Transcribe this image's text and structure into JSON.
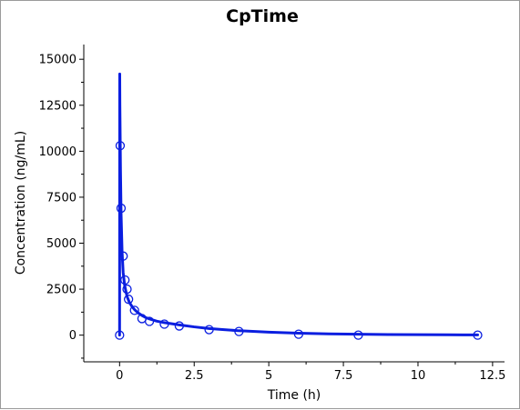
{
  "chart_data": {
    "type": "line",
    "title": "CpTime",
    "xlabel": "Time (h)",
    "ylabel": "Concentration (ng/mL)",
    "xlim": [
      -1.2,
      12.9
    ],
    "ylim": [
      -1450,
      15800
    ],
    "x_ticks": [
      0,
      2.5,
      5,
      7.5,
      10,
      12.5
    ],
    "x_tick_labels": [
      "0",
      "2.5",
      "5",
      "7.5",
      "10",
      "12.5"
    ],
    "y_ticks": [
      0,
      2500,
      5000,
      7500,
      10000,
      12500,
      15000
    ],
    "y_tick_labels": [
      "0",
      "2500",
      "5000",
      "7500",
      "10000",
      "12500",
      "15000"
    ],
    "grid": false,
    "legend": "none",
    "series": [
      {
        "kind": "fitted-line",
        "color": "#0a1ee0",
        "x": [
          0,
          0.005,
          0.01,
          0.03,
          0.05,
          0.083,
          0.12,
          0.17,
          0.25,
          0.33,
          0.42,
          0.5,
          0.62,
          0.75,
          0.87,
          1,
          1.25,
          1.5,
          1.75,
          2,
          2.5,
          3,
          3.5,
          4,
          5,
          6,
          7,
          8,
          9,
          10,
          11,
          12
        ],
        "y": [
          0,
          14200,
          12500,
          9000,
          6600,
          4550,
          3400,
          2700,
          2100,
          1780,
          1550,
          1390,
          1210,
          1070,
          960,
          880,
          760,
          680,
          620,
          560,
          450,
          360,
          300,
          240,
          160,
          105,
          72,
          50,
          36,
          26,
          18,
          12
        ]
      },
      {
        "kind": "observed-points",
        "color": "#0a1ee0",
        "marker": "open-circle",
        "x": [
          0,
          0.02,
          0.05,
          0.12,
          0.18,
          0.25,
          0.3,
          0.5,
          0.75,
          1,
          1.5,
          2,
          3,
          4,
          6,
          8,
          12
        ],
        "y": [
          0,
          10300,
          6900,
          4300,
          3000,
          2500,
          1950,
          1350,
          900,
          750,
          600,
          500,
          300,
          200,
          50,
          0,
          0
        ]
      }
    ]
  }
}
